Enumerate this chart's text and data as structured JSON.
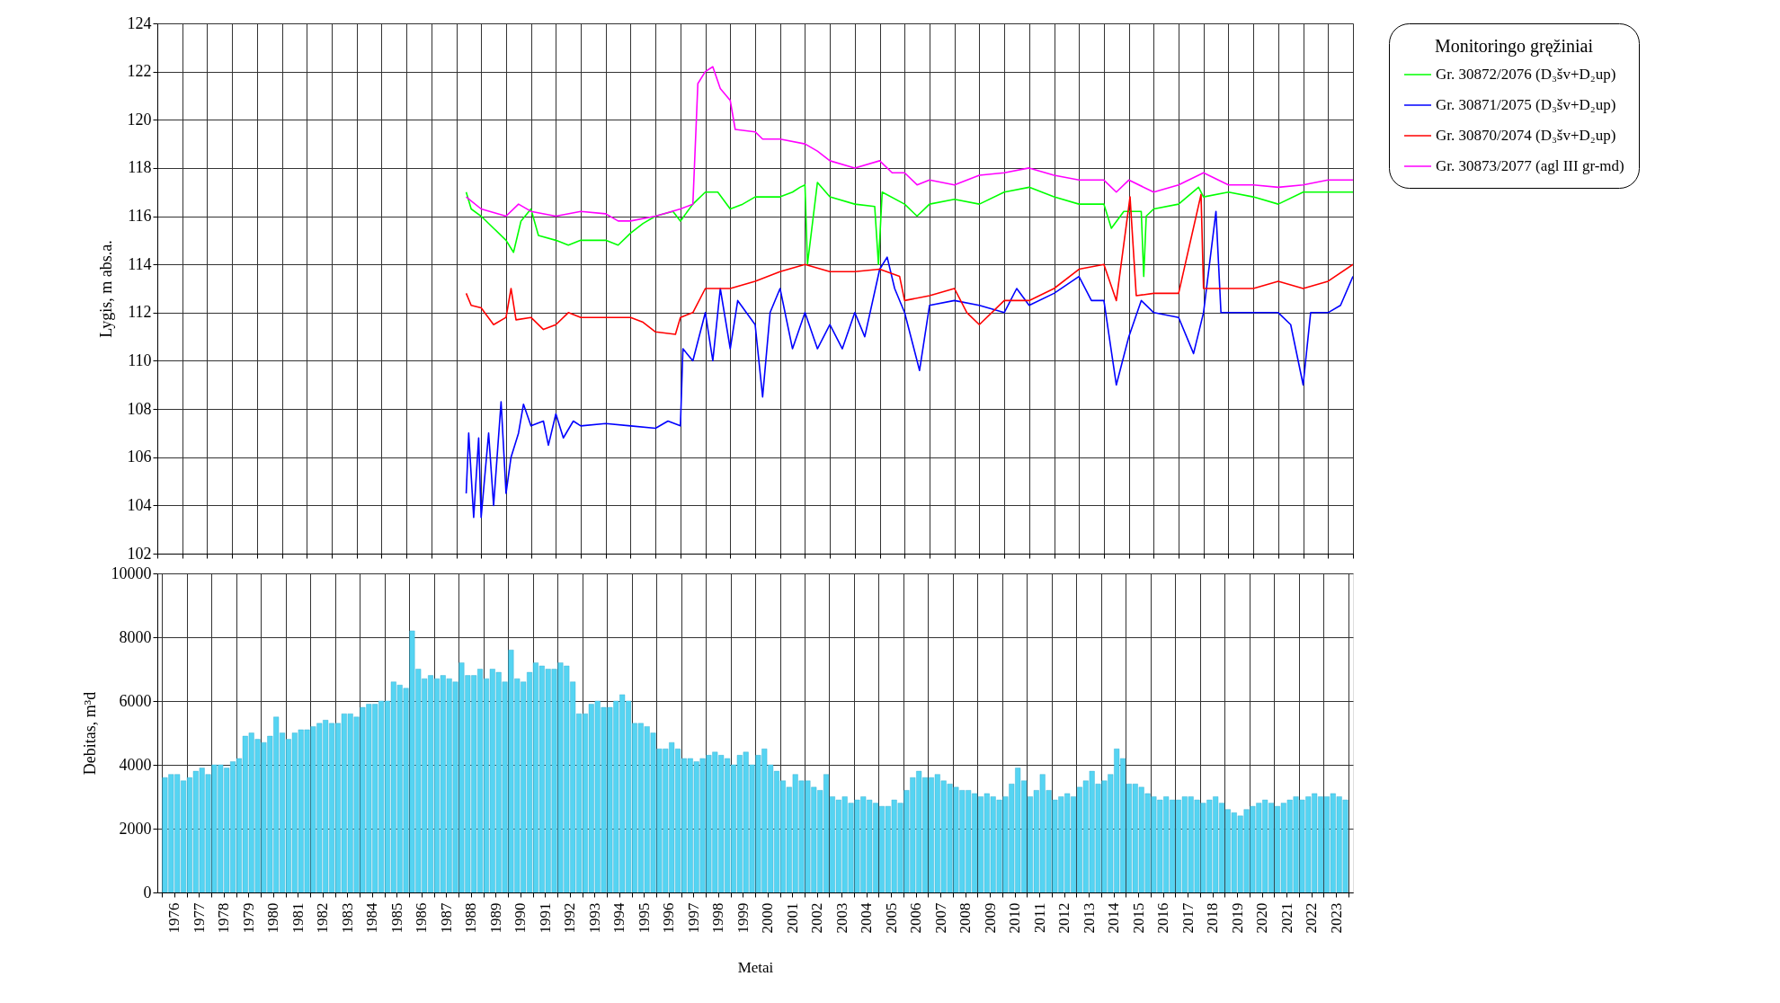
{
  "chart_data": [
    {
      "type": "line",
      "ylabel": "Lygis, m abs.a.",
      "legend_title": "Monitoringo gręžiniai",
      "legend": "right",
      "grid": true,
      "tick_labels": "y",
      "xlim": [
        1976,
        2024
      ],
      "xticks": [
        1976,
        1977,
        1978,
        1979,
        1980,
        1981,
        1982,
        1983,
        1984,
        1985,
        1986,
        1987,
        1988,
        1989,
        1990,
        1991,
        1992,
        1993,
        1994,
        1995,
        1996,
        1997,
        1998,
        1999,
        2000,
        2001,
        2002,
        2003,
        2004,
        2005,
        2006,
        2007,
        2008,
        2009,
        2010,
        2011,
        2012,
        2013,
        2014,
        2015,
        2016,
        2017,
        2018,
        2019,
        2020,
        2021,
        2022,
        2023,
        2024
      ],
      "ylim": [
        102,
        124
      ],
      "yticks": [
        102,
        104,
        106,
        108,
        110,
        112,
        114,
        116,
        118,
        120,
        122,
        124
      ],
      "series": [
        {
          "name": "Gr. 30872/2076 (D₃šv+D₂up)",
          "color": "#00ff00",
          "x": [
            1988.4,
            1988.6,
            1989,
            1989.5,
            1990,
            1990.3,
            1990.6,
            1991,
            1991.3,
            1992,
            1992.5,
            1993,
            1994,
            1994.5,
            1995,
            1995.5,
            1996,
            1996.7,
            1997,
            1997.5,
            1998,
            1998.5,
            1999,
            1999.5,
            2000,
            2001,
            2001.5,
            2001.8,
            2002.0,
            2002.1,
            2002.5,
            2003,
            2004,
            2004.8,
            2004.95,
            2005.1,
            2006,
            2006.5,
            2007,
            2008,
            2009,
            2010,
            2011,
            2012,
            2013,
            2014,
            2014.3,
            2014.8,
            2015.5,
            2015.6,
            2015.7,
            2016,
            2017,
            2017.8,
            2018,
            2019,
            2020,
            2021,
            2022,
            2023,
            2024
          ],
          "values": [
            117,
            116.3,
            116,
            115.5,
            115,
            114.5,
            115.8,
            116.3,
            115.2,
            115,
            114.8,
            115,
            115,
            114.8,
            115.3,
            115.7,
            116,
            116.2,
            115.8,
            116.5,
            117,
            117,
            116.3,
            116.5,
            116.8,
            116.8,
            117,
            117.2,
            117.3,
            114,
            117.4,
            116.8,
            116.5,
            116.4,
            114,
            117,
            116.5,
            116,
            116.5,
            116.7,
            116.5,
            117,
            117.2,
            116.8,
            116.5,
            116.5,
            115.5,
            116.2,
            116.2,
            113.5,
            116,
            116.3,
            116.5,
            117.2,
            116.8,
            117,
            116.8,
            116.5,
            117,
            117,
            117
          ]
        },
        {
          "name": "Gr. 30871/2075 (D₃šv+D₂up)",
          "color": "#0000ff",
          "x": [
            1988.4,
            1988.5,
            1988.7,
            1988.9,
            1989,
            1989.3,
            1989.5,
            1989.8,
            1990,
            1990.2,
            1990.5,
            1990.7,
            1991,
            1991.5,
            1991.7,
            1992,
            1992.3,
            1992.7,
            1993,
            1994,
            1995,
            1996,
            1996.5,
            1997,
            1997.1,
            1997.5,
            1998,
            1998.3,
            1998.6,
            1999,
            1999.3,
            2000,
            2000.3,
            2000.6,
            2001,
            2001.5,
            2002,
            2002.5,
            2003,
            2003.5,
            2004,
            2004.4,
            2005,
            2005.3,
            2005.6,
            2006,
            2006.6,
            2007,
            2008,
            2009,
            2010,
            2010.5,
            2011,
            2012,
            2013,
            2013.5,
            2014,
            2014.5,
            2015,
            2015.5,
            2016,
            2017,
            2017.6,
            2018,
            2018.5,
            2018.7,
            2019,
            2020,
            2021,
            2021.5,
            2022,
            2022.3,
            2023,
            2023.5,
            2024
          ],
          "values": [
            104.5,
            107,
            103.5,
            106.8,
            103.5,
            107,
            104,
            108.3,
            104.5,
            106,
            107,
            108.2,
            107.3,
            107.5,
            106.5,
            107.8,
            106.8,
            107.5,
            107.3,
            107.4,
            107.3,
            107.2,
            107.5,
            107.3,
            110.5,
            110,
            112,
            110,
            113,
            110.5,
            112.5,
            111.5,
            108.5,
            112,
            113,
            110.5,
            112,
            110.5,
            111.5,
            110.5,
            112,
            111,
            113.8,
            114.3,
            113,
            112,
            109.6,
            112.3,
            112.5,
            112.3,
            112,
            113,
            112.3,
            112.8,
            113.5,
            112.5,
            112.5,
            109,
            111,
            112.5,
            112,
            111.8,
            110.3,
            112,
            116.2,
            112,
            112,
            112,
            112,
            111.5,
            109,
            112,
            112,
            112.3,
            113.5
          ]
        },
        {
          "name": "Gr. 30870/2074 (D₃šv+D₂up)",
          "color": "#ff0000",
          "x": [
            1988.4,
            1988.6,
            1989,
            1989.5,
            1990,
            1990.2,
            1990.4,
            1991,
            1991.5,
            1992,
            1992.5,
            1993,
            1994,
            1995,
            1995.5,
            1996,
            1996.8,
            1997,
            1997.5,
            1998,
            1999,
            2000,
            2001,
            2002,
            2003,
            2004,
            2005,
            2005.8,
            2006,
            2007,
            2008,
            2008.5,
            2009,
            2010,
            2011,
            2012,
            2013,
            2014,
            2014.5,
            2015.05,
            2015.3,
            2016,
            2017,
            2017.9,
            2018,
            2019,
            2020,
            2021,
            2022,
            2023,
            2024
          ],
          "values": [
            112.8,
            112.3,
            112.2,
            111.5,
            111.8,
            113,
            111.7,
            111.8,
            111.3,
            111.5,
            112,
            111.8,
            111.8,
            111.8,
            111.6,
            111.2,
            111.1,
            111.8,
            112,
            113,
            113,
            113.3,
            113.7,
            114,
            113.7,
            113.7,
            113.8,
            113.5,
            112.5,
            112.7,
            113,
            112,
            111.5,
            112.5,
            112.5,
            113,
            113.8,
            114,
            112.5,
            116.8,
            112.7,
            112.8,
            112.8,
            116.9,
            113,
            113,
            113,
            113.3,
            113,
            113.3,
            114
          ]
        },
        {
          "name": "Gr. 30873/2077 (agl III gr-md)",
          "color": "#ff00ff",
          "x": [
            1988.4,
            1989,
            1990,
            1990.5,
            1991,
            1992,
            1993,
            1994,
            1994.5,
            1995,
            1996,
            1997,
            1997.5,
            1997.7,
            1998,
            1998.3,
            1998.6,
            1999,
            1999.2,
            2000,
            2000.3,
            2001,
            2002,
            2002.5,
            2003,
            2004,
            2005,
            2005.5,
            2006,
            2006.5,
            2007,
            2008,
            2009,
            2010,
            2011,
            2012,
            2013,
            2014,
            2014.5,
            2015,
            2016,
            2017,
            2018,
            2019,
            2020,
            2021,
            2022,
            2023,
            2024
          ],
          "values": [
            116.8,
            116.3,
            116,
            116.5,
            116.2,
            116,
            116.2,
            116.1,
            115.8,
            115.8,
            116,
            116.3,
            116.5,
            121.5,
            122,
            122.2,
            121.3,
            120.8,
            119.6,
            119.5,
            119.2,
            119.2,
            119,
            118.7,
            118.3,
            118,
            118.3,
            117.8,
            117.8,
            117.3,
            117.5,
            117.3,
            117.7,
            117.8,
            118,
            117.7,
            117.5,
            117.5,
            117,
            117.5,
            117,
            117.3,
            117.8,
            117.3,
            117.3,
            117.2,
            117.3,
            117.5,
            117.5
          ]
        }
      ]
    },
    {
      "type": "bar",
      "ylabel": "Debitas, m³d",
      "xlabel": "Metai",
      "grid": true,
      "xlim": [
        1976,
        2024
      ],
      "xticks": [
        {
          "value": 1976,
          "label": null
        },
        {
          "value": 1976.5,
          "label": "1976"
        },
        {
          "value": 1977,
          "label": null
        },
        {
          "value": 1977.5,
          "label": "1977"
        },
        {
          "value": 1978,
          "label": null
        },
        {
          "value": 1978.5,
          "label": "1978"
        },
        {
          "value": 1979,
          "label": null
        },
        {
          "value": 1979.5,
          "label": "1979"
        },
        {
          "value": 1980,
          "label": null
        },
        {
          "value": 1980.5,
          "label": "1980"
        },
        {
          "value": 1981,
          "label": null
        },
        {
          "value": 1981.5,
          "label": "1981"
        },
        {
          "value": 1982,
          "label": null
        },
        {
          "value": 1982.5,
          "label": "1982"
        },
        {
          "value": 1983,
          "label": null
        },
        {
          "value": 1983.5,
          "label": "1983"
        },
        {
          "value": 1984,
          "label": null
        },
        {
          "value": 1984.5,
          "label": "1984"
        },
        {
          "value": 1985,
          "label": null
        },
        {
          "value": 1985.5,
          "label": "1985"
        },
        {
          "value": 1986,
          "label": null
        },
        {
          "value": 1986.5,
          "label": "1986"
        },
        {
          "value": 1987,
          "label": null
        },
        {
          "value": 1987.5,
          "label": "1987"
        },
        {
          "value": 1988,
          "label": null
        },
        {
          "value": 1988.5,
          "label": "1988"
        },
        {
          "value": 1989,
          "label": null
        },
        {
          "value": 1989.5,
          "label": "1989"
        },
        {
          "value": 1990,
          "label": null
        },
        {
          "value": 1990.5,
          "label": "1990"
        },
        {
          "value": 1991,
          "label": null
        },
        {
          "value": 1991.5,
          "label": "1991"
        },
        {
          "value": 1992,
          "label": null
        },
        {
          "value": 1992.5,
          "label": "1992"
        },
        {
          "value": 1993,
          "label": null
        },
        {
          "value": 1993.5,
          "label": "1993"
        },
        {
          "value": 1994,
          "label": null
        },
        {
          "value": 1994.5,
          "label": "1994"
        },
        {
          "value": 1995,
          "label": null
        },
        {
          "value": 1995.5,
          "label": "1995"
        },
        {
          "value": 1996,
          "label": null
        },
        {
          "value": 1996.5,
          "label": "1996"
        },
        {
          "value": 1997,
          "label": null
        },
        {
          "value": 1997.5,
          "label": "1997"
        },
        {
          "value": 1998,
          "label": null
        },
        {
          "value": 1998.5,
          "label": "1998"
        },
        {
          "value": 1999,
          "label": null
        },
        {
          "value": 1999.5,
          "label": "1999"
        },
        {
          "value": 2000,
          "label": null
        },
        {
          "value": 2000.5,
          "label": "2000"
        },
        {
          "value": 2001,
          "label": null
        },
        {
          "value": 2001.5,
          "label": "2001"
        },
        {
          "value": 2002,
          "label": null
        },
        {
          "value": 2002.5,
          "label": "2002"
        },
        {
          "value": 2003,
          "label": null
        },
        {
          "value": 2003.5,
          "label": "2003"
        },
        {
          "value": 2004,
          "label": null
        },
        {
          "value": 2004.5,
          "label": "2004"
        },
        {
          "value": 2005,
          "label": null
        },
        {
          "value": 2005.5,
          "label": "2005"
        },
        {
          "value": 2006,
          "label": null
        },
        {
          "value": 2006.5,
          "label": "2006"
        },
        {
          "value": 2007,
          "label": null
        },
        {
          "value": 2007.5,
          "label": "2007"
        },
        {
          "value": 2008,
          "label": null
        },
        {
          "value": 2008.5,
          "label": "2008"
        },
        {
          "value": 2009,
          "label": null
        },
        {
          "value": 2009.5,
          "label": "2009"
        },
        {
          "value": 2010,
          "label": null
        },
        {
          "value": 2010.5,
          "label": "2010"
        },
        {
          "value": 2011,
          "label": null
        },
        {
          "value": 2011.5,
          "label": "2011"
        },
        {
          "value": 2012,
          "label": null
        },
        {
          "value": 2012.5,
          "label": "2012"
        },
        {
          "value": 2013,
          "label": null
        },
        {
          "value": 2013.5,
          "label": "2013"
        },
        {
          "value": 2014,
          "label": null
        },
        {
          "value": 2014.5,
          "label": "2014"
        },
        {
          "value": 2015,
          "label": null
        },
        {
          "value": 2015.5,
          "label": "2015"
        },
        {
          "value": 2016,
          "label": null
        },
        {
          "value": 2016.5,
          "label": "2016"
        },
        {
          "value": 2017,
          "label": null
        },
        {
          "value": 2017.5,
          "label": "2017"
        },
        {
          "value": 2018,
          "label": null
        },
        {
          "value": 2018.5,
          "label": "2018"
        },
        {
          "value": 2019,
          "label": null
        },
        {
          "value": 2019.5,
          "label": "2019"
        },
        {
          "value": 2020,
          "label": null
        },
        {
          "value": 2020.5,
          "label": "2020"
        },
        {
          "value": 2021,
          "label": null
        },
        {
          "value": 2021.5,
          "label": "2021"
        },
        {
          "value": 2022,
          "label": null
        },
        {
          "value": 2022.5,
          "label": "2022"
        },
        {
          "value": 2023,
          "label": null
        },
        {
          "value": 2023.5,
          "label": "2023"
        },
        {
          "value": 2024,
          "label": null
        }
      ],
      "ylim": [
        0,
        10000
      ],
      "yticks": [
        0,
        2000,
        4000,
        6000,
        8000,
        10000
      ],
      "series": [
        {
          "color": "#55d4f2",
          "x": [
            1976.125,
            1976.375,
            1976.625,
            1976.875,
            1977.125,
            1977.375,
            1977.625,
            1977.875,
            1978.125,
            1978.375,
            1978.625,
            1978.875,
            1979.125,
            1979.375,
            1979.625,
            1979.875,
            1980.125,
            1980.375,
            1980.625,
            1980.875,
            1981.125,
            1981.375,
            1981.625,
            1981.875,
            1982.125,
            1982.375,
            1982.625,
            1982.875,
            1983.125,
            1983.375,
            1983.625,
            1983.875,
            1984.125,
            1984.375,
            1984.625,
            1984.875,
            1985.125,
            1985.375,
            1985.625,
            1985.875,
            1986.125,
            1986.375,
            1986.625,
            1986.875,
            1987.125,
            1987.375,
            1987.625,
            1987.875,
            1988.125,
            1988.375,
            1988.625,
            1988.875,
            1989.125,
            1989.375,
            1989.625,
            1989.875,
            1990.125,
            1990.375,
            1990.625,
            1990.875,
            1991.125,
            1991.375,
            1991.625,
            1991.875,
            1992.125,
            1992.375,
            1992.625,
            1992.875,
            1993.125,
            1993.375,
            1993.625,
            1993.875,
            1994.125,
            1994.375,
            1994.625,
            1994.875,
            1995.125,
            1995.375,
            1995.625,
            1995.875,
            1996.125,
            1996.375,
            1996.625,
            1996.875,
            1997.125,
            1997.375,
            1997.625,
            1997.875,
            1998.125,
            1998.375,
            1998.625,
            1998.875,
            1999.125,
            1999.375,
            1999.625,
            1999.875,
            2000.125,
            2000.375,
            2000.625,
            2000.875,
            2001.125,
            2001.375,
            2001.625,
            2001.875,
            2002.125,
            2002.375,
            2002.625,
            2002.875,
            2003.125,
            2003.375,
            2003.625,
            2003.875,
            2004.125,
            2004.375,
            2004.625,
            2004.875,
            2005.125,
            2005.375,
            2005.625,
            2005.875,
            2006.125,
            2006.375,
            2006.625,
            2006.875,
            2007.125,
            2007.375,
            2007.625,
            2007.875,
            2008.125,
            2008.375,
            2008.625,
            2008.875,
            2009.125,
            2009.375,
            2009.625,
            2009.875,
            2010.125,
            2010.375,
            2010.625,
            2010.875,
            2011.125,
            2011.375,
            2011.625,
            2011.875,
            2012.125,
            2012.375,
            2012.625,
            2012.875,
            2013.125,
            2013.375,
            2013.625,
            2013.875,
            2014.125,
            2014.375,
            2014.625,
            2014.875,
            2015.125,
            2015.375,
            2015.625,
            2015.875,
            2016.125,
            2016.375,
            2016.625,
            2016.875,
            2017.125,
            2017.375,
            2017.625,
            2017.875,
            2018.125,
            2018.375,
            2018.625,
            2018.875,
            2019.125,
            2019.375,
            2019.625,
            2019.875,
            2020.125,
            2020.375,
            2020.625,
            2020.875,
            2021.125,
            2021.375,
            2021.625,
            2021.875,
            2022.125,
            2022.375,
            2022.625,
            2022.875,
            2023.125,
            2023.375,
            2023.625,
            2023.875
          ],
          "values": [
            3600,
            3700,
            3700,
            3500,
            3600,
            3800,
            3900,
            3700,
            4000,
            4000,
            3900,
            4100,
            4200,
            4900,
            5000,
            4800,
            4700,
            4900,
            5500,
            5000,
            4800,
            5000,
            5100,
            5100,
            5200,
            5300,
            5400,
            5300,
            5300,
            5600,
            5600,
            5500,
            5800,
            5900,
            5900,
            6000,
            6000,
            6600,
            6500,
            6400,
            8200,
            7000,
            6700,
            6800,
            6700,
            6800,
            6700,
            6600,
            7200,
            6800,
            6800,
            7000,
            6700,
            7000,
            6900,
            6600,
            7600,
            6700,
            6600,
            6900,
            7200,
            7100,
            7000,
            7000,
            7200,
            7100,
            6600,
            5600,
            5600,
            5900,
            6000,
            5800,
            5800,
            6000,
            6200,
            6000,
            5300,
            5300,
            5200,
            5000,
            4500,
            4500,
            4700,
            4500,
            4200,
            4200,
            4100,
            4200,
            4300,
            4400,
            4300,
            4200,
            4000,
            4300,
            4400,
            4000,
            4300,
            4500,
            4000,
            3800,
            3500,
            3300,
            3700,
            3500,
            3500,
            3300,
            3200,
            3700,
            3000,
            2900,
            3000,
            2800,
            2900,
            3000,
            2900,
            2800,
            2700,
            2700,
            2900,
            2800,
            3200,
            3600,
            3800,
            3600,
            3600,
            3700,
            3500,
            3400,
            3300,
            3200,
            3200,
            3100,
            3000,
            3100,
            3000,
            2900,
            3000,
            3400,
            3900,
            3500,
            3000,
            3200,
            3700,
            3200,
            2900,
            3000,
            3100,
            3000,
            3300,
            3500,
            3800,
            3400,
            3500,
            3700,
            4500,
            4200,
            3400,
            3400,
            3300,
            3100,
            3000,
            2900,
            3000,
            2900,
            2900,
            3000,
            3000,
            2900,
            2800,
            2900,
            3000,
            2800,
            2600,
            2500,
            2400,
            2600,
            2700,
            2800,
            2900,
            2800,
            2700,
            2800,
            2900,
            3000,
            2900,
            3000,
            3100,
            3000,
            3000,
            3100,
            3000,
            2900
          ]
        }
      ]
    }
  ]
}
